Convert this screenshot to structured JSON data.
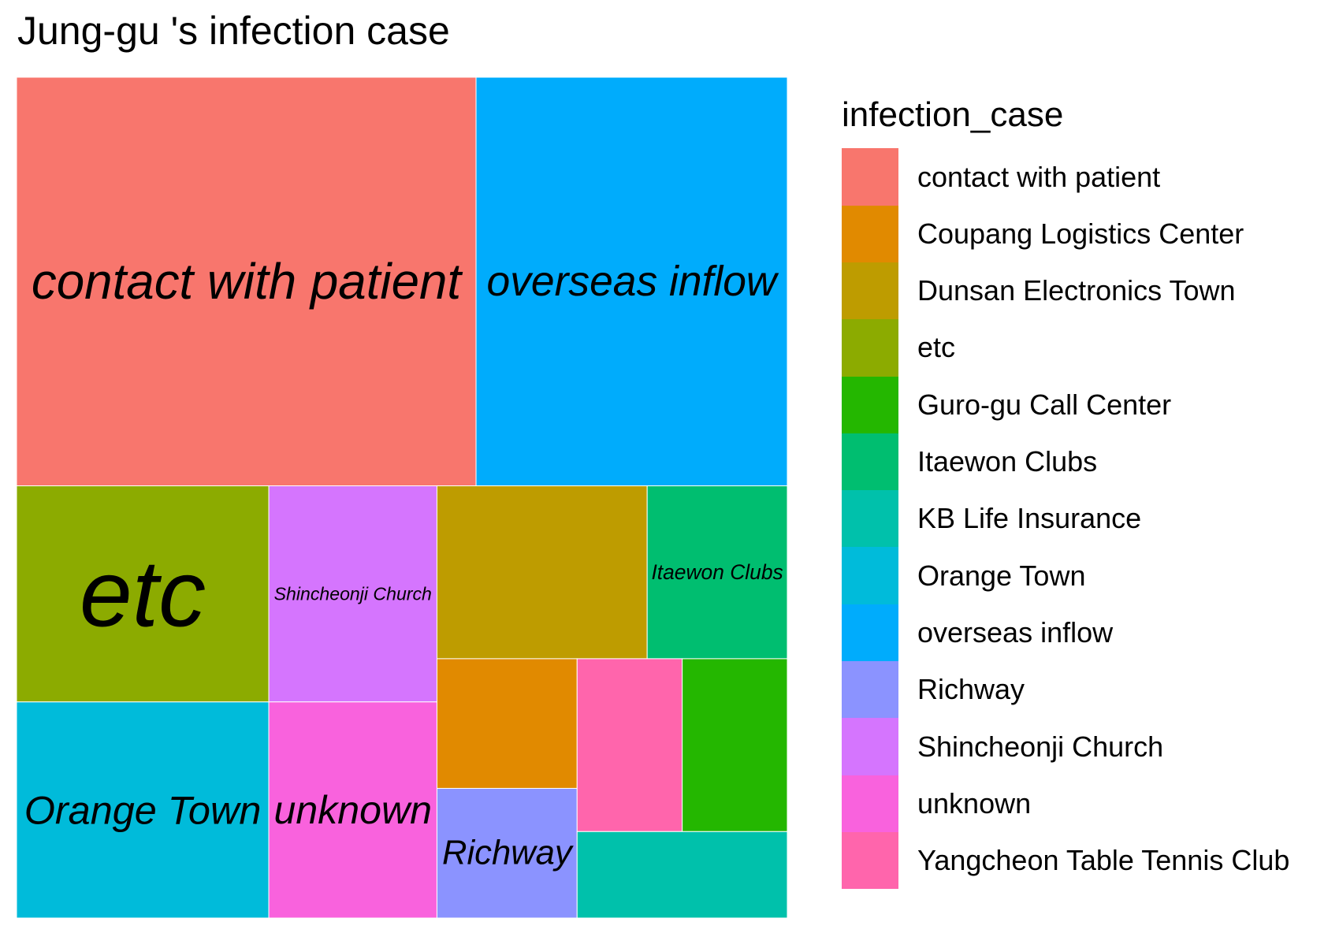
{
  "chart_data": {
    "type": "treemap",
    "title": "Jung-gu 's infection case",
    "legend_title": "infection_case",
    "legend_position": "right",
    "legend": [
      {
        "name": "contact with patient",
        "color": "#F8766D"
      },
      {
        "name": "Coupang Logistics Center",
        "color": "#E18A00"
      },
      {
        "name": "Dunsan Electronics Town",
        "color": "#BE9C00"
      },
      {
        "name": "etc",
        "color": "#8CAB00"
      },
      {
        "name": "Guro-gu Call Center",
        "color": "#24B700"
      },
      {
        "name": "Itaewon Clubs",
        "color": "#00BE70"
      },
      {
        "name": "KB Life Insurance",
        "color": "#00C1AB"
      },
      {
        "name": "Orange Town",
        "color": "#00BBDA"
      },
      {
        "name": "overseas inflow",
        "color": "#00ACFC"
      },
      {
        "name": "Richway",
        "color": "#8B93FF"
      },
      {
        "name": "Shincheonji Church",
        "color": "#D575FE"
      },
      {
        "name": "unknown",
        "color": "#F962DD"
      },
      {
        "name": "Yangcheon Table Tennis Club",
        "color": "#FF65AC"
      }
    ],
    "values": [
      {
        "name": "contact with patient",
        "value": 31,
        "label": "contact with patient"
      },
      {
        "name": "overseas inflow",
        "value": 21,
        "label": "overseas inflow"
      },
      {
        "name": "etc",
        "value": 9,
        "label": "etc"
      },
      {
        "name": "Orange Town",
        "value": 9,
        "label": "Orange Town"
      },
      {
        "name": "Shincheonji Church",
        "value": 6,
        "label": "Shincheonji Church"
      },
      {
        "name": "unknown",
        "value": 6,
        "label": "unknown"
      },
      {
        "name": "Dunsan Electronics Town",
        "value": 6,
        "label": ""
      },
      {
        "name": "Itaewon Clubs",
        "value": 4,
        "label": "Itaewon Clubs"
      },
      {
        "name": "Coupang Logistics Center",
        "value": 3,
        "label": ""
      },
      {
        "name": "Richway",
        "value": 3,
        "label": "Richway"
      },
      {
        "name": "Yangcheon Table Tennis Club",
        "value": 3,
        "label": ""
      },
      {
        "name": "Guro-gu Call Center",
        "value": 3,
        "label": ""
      },
      {
        "name": "KB Life Insurance",
        "value": 3,
        "label": ""
      }
    ]
  }
}
